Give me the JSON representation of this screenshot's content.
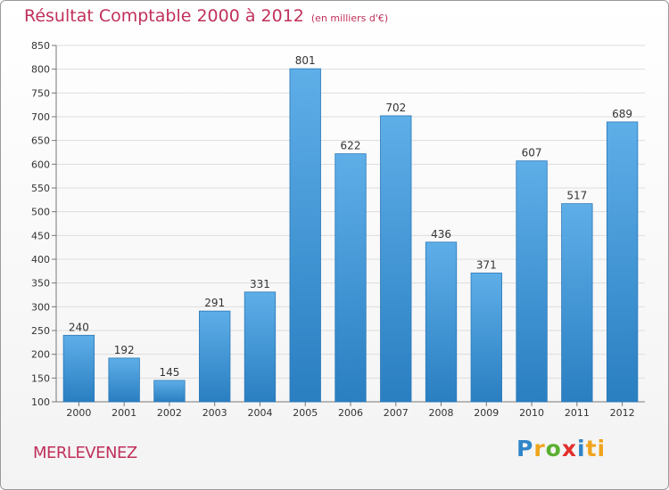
{
  "title": "Résultat Comptable 2000 à 2012",
  "subtitle": "(en milliers d'€)",
  "town": "MERLEVENEZ",
  "logo": [
    "P",
    "r",
    "o",
    "x",
    "i",
    "ti"
  ],
  "colors": {
    "title": "#c0305a",
    "bar_top": "#5eaee8",
    "bar_bottom": "#2a7fc1",
    "grid": "#dddddd"
  },
  "chart_data": {
    "type": "bar",
    "title": "Résultat Comptable 2000 à 2012",
    "subtitle": "(en milliers d'€)",
    "xlabel": "",
    "ylabel": "",
    "categories": [
      "2000",
      "2001",
      "2002",
      "2003",
      "2004",
      "2005",
      "2006",
      "2007",
      "2008",
      "2009",
      "2010",
      "2011",
      "2012"
    ],
    "values": [
      240,
      192,
      145,
      291,
      331,
      801,
      622,
      702,
      436,
      371,
      607,
      517,
      689
    ],
    "ylim": [
      100,
      850
    ],
    "yticks": [
      100,
      150,
      200,
      250,
      300,
      350,
      400,
      450,
      500,
      550,
      600,
      650,
      700,
      750,
      800,
      850
    ],
    "grid": true,
    "legend": "none"
  }
}
